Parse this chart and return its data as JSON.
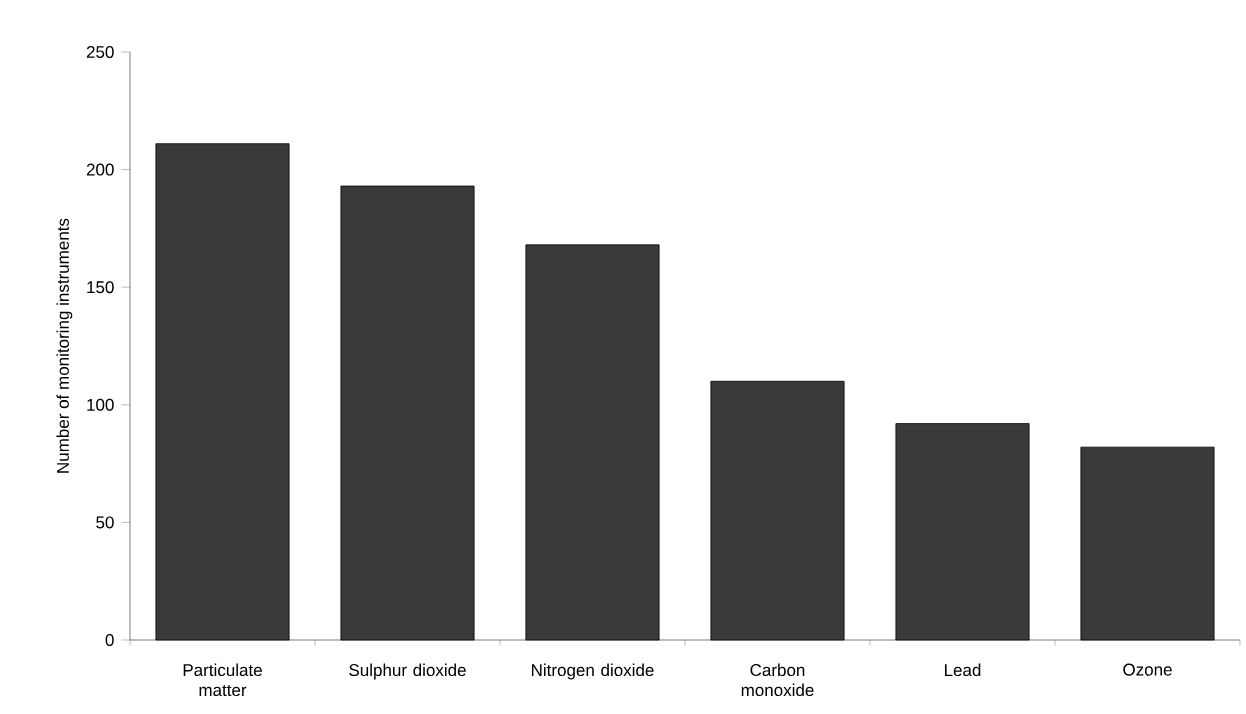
{
  "chart_data": {
    "type": "bar",
    "ylabel": "Number of monitoring instruments",
    "categories": [
      "Particulate matter",
      "Sulphur dioxide",
      "Nitrogen dioxide",
      "Carbon monoxide",
      "Lead",
      "Ozone"
    ],
    "values": [
      211,
      193,
      168,
      110,
      92,
      82
    ],
    "color": "#3a3a3a",
    "ylim": [
      0,
      250
    ],
    "yticks": [
      0,
      50,
      100,
      150,
      200,
      250
    ],
    "grid": false
  }
}
